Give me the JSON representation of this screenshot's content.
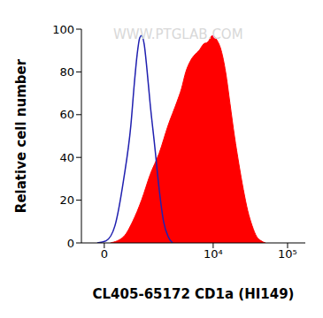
{
  "chart_data": {
    "type": "area",
    "x_label": "CL405-65172 CD1a (HI149)",
    "y_label": "Relative cell number",
    "annotations": [
      "WWW.PTGLAB.COM"
    ],
    "xlim": [
      -530,
      173000
    ],
    "xticks": [
      {
        "value": 0,
        "label": "0"
      },
      {
        "value": 10000,
        "label": "10⁴"
      },
      {
        "value": 100000,
        "label": "10⁵"
      }
    ],
    "ylim": [
      0,
      100
    ],
    "yticks": [
      0,
      20,
      40,
      60,
      80,
      100
    ],
    "grid": false,
    "series": [
      {
        "type": "area",
        "color": "#ff0000",
        "x": [
          133,
          441,
          685,
          983,
          1343,
          1822,
          2435,
          3229,
          3712,
          4264,
          4900,
          5624,
          6450,
          7404,
          8490,
          9750,
          11180,
          12830,
          14700,
          16870,
          19330,
          22150,
          25450,
          29190,
          33460,
          38360,
          44000,
          50500
        ],
        "values": [
          0,
          3,
          10,
          20,
          32,
          42,
          55,
          66,
          72,
          80,
          85,
          88,
          90,
          93,
          94,
          97,
          95,
          90,
          80,
          65,
          50,
          37,
          25,
          15,
          8,
          3,
          1,
          0
        ]
      },
      {
        "type": "line",
        "color": "#2020b0",
        "x": [
          -152,
          38,
          231,
          441,
          633,
          740,
          827,
          918,
          983,
          1084,
          1192,
          1343,
          1573,
          1822,
          2105,
          2435,
          2808
        ],
        "values": [
          0,
          1,
          8,
          30,
          55,
          75,
          88,
          96,
          97,
          93,
          82,
          65,
          45,
          25,
          10,
          3,
          0
        ]
      }
    ]
  }
}
